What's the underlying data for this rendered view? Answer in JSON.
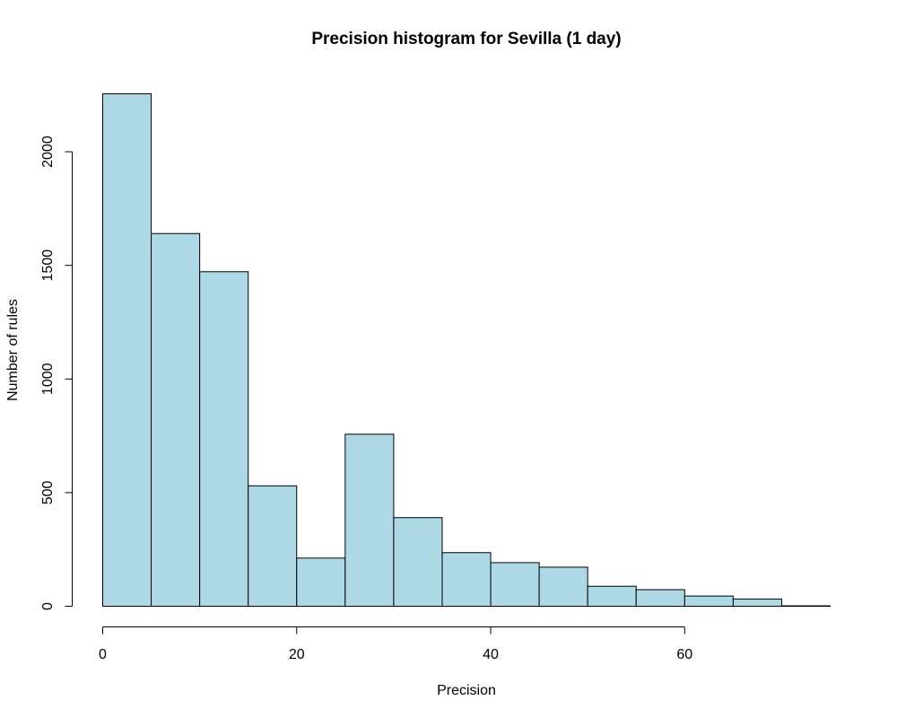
{
  "chart_data": {
    "type": "bar",
    "title": "Precision histogram for Sevilla (1 day)",
    "xlabel": "Precision",
    "ylabel": "Number of rules",
    "bin_edges": [
      0,
      5,
      10,
      15,
      20,
      25,
      30,
      35,
      40,
      45,
      50,
      55,
      60,
      65,
      70,
      75
    ],
    "values": [
      2255,
      1640,
      1472,
      530,
      212,
      757,
      390,
      236,
      192,
      172,
      88,
      73,
      45,
      32,
      2
    ],
    "xlim": [
      0,
      75
    ],
    "ylim": [
      0,
      2255
    ],
    "x_ticks": [
      0,
      20,
      40,
      60
    ],
    "y_ticks": [
      0,
      500,
      1000,
      1500,
      2000
    ],
    "bar_fill": "#add8e6",
    "bar_stroke": "#000000",
    "grid": false
  }
}
